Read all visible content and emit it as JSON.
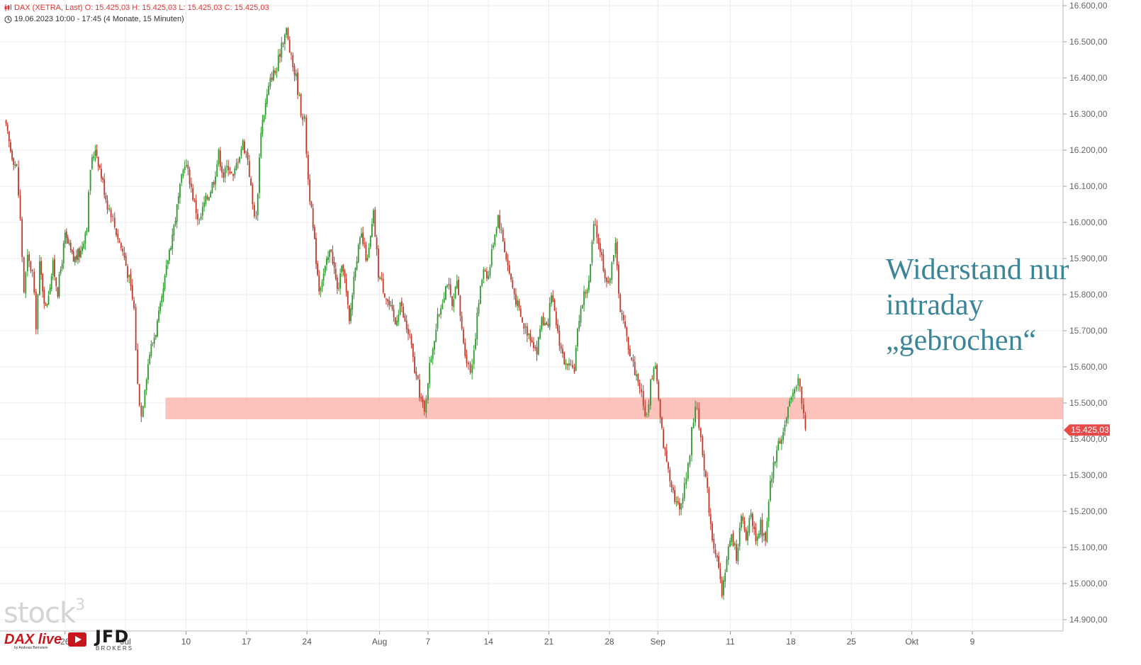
{
  "header": {
    "instrument_line": "DAX (XETRA, Last)  O: 15.425,03  H: 15.425,03  L: 15.425,03  C: 15.425,03",
    "period_line": "19.06.2023 10:00 - 17:45    (4 Monate, 15 Minuten)"
  },
  "annotation": {
    "text": "Widerstand nur\nintraday\n„gebrochen“"
  },
  "logos": {
    "stock3": "stock",
    "stock3_sup": "3",
    "dax_live": "DAX live",
    "dax_live_sub": "by Andreas Bernstein",
    "jfd": "JFD",
    "jfd_sub": "BROKERS"
  },
  "colors": {
    "up": "#2e9a2e",
    "down": "#c0392b",
    "zone": "#fbb8b0",
    "annotation": "#3a8598",
    "price_badge": "#e84a4a",
    "grid": "#ebebeb"
  },
  "chart_data": {
    "type": "candlestick",
    "title": "DAX (XETRA, Last)",
    "interval": "15 Minuten",
    "range": "4 Monate",
    "ylim": [
      14880,
      16610
    ],
    "y_ticks": [
      14900,
      15000,
      15100,
      15200,
      15300,
      15400,
      15500,
      15600,
      15700,
      15800,
      15900,
      16000,
      16100,
      16200,
      16300,
      16400,
      16500,
      16600
    ],
    "y_tick_labels": [
      "14.900,00",
      "15.000,00",
      "15.100,00",
      "15.200,00",
      "15.300,00",
      "15.400,00",
      "15.500,00",
      "15.600,00",
      "15.700,00",
      "15.800,00",
      "15.900,00",
      "16.000,00",
      "16.100,00",
      "16.200,00",
      "16.300,00",
      "16.400,00",
      "16.500,00",
      "16.600,00"
    ],
    "last_price": 15425.03,
    "last_price_label": "15.425,03",
    "resistance_zone": [
      15455,
      15515
    ],
    "zone_start_day": 8.8,
    "x_day_count": 120,
    "x_ticks": [
      {
        "day": 0.5,
        "label": "26"
      },
      {
        "day": 5.5,
        "label": "Jul"
      },
      {
        "day": 10.5,
        "label": "10"
      },
      {
        "day": 15.5,
        "label": "17"
      },
      {
        "day": 20.5,
        "label": "24"
      },
      {
        "day": 26.5,
        "label": "Aug"
      },
      {
        "day": 30.5,
        "label": "7"
      },
      {
        "day": 35.5,
        "label": "14"
      },
      {
        "day": 40.5,
        "label": "21"
      },
      {
        "day": 45.5,
        "label": "28"
      },
      {
        "day": 49.5,
        "label": "Sep"
      },
      {
        "day": 55.5,
        "label": "11"
      },
      {
        "day": 60.5,
        "label": "18"
      },
      {
        "day": 65.5,
        "label": "25"
      },
      {
        "day": 70.5,
        "label": "Okt"
      },
      {
        "day": 75.5,
        "label": "9"
      }
    ],
    "price_path": [
      [
        -4.5,
        16280
      ],
      [
        -4.0,
        16200
      ],
      [
        -3.5,
        16150
      ],
      [
        -3.2,
        16005
      ],
      [
        -2.9,
        15810
      ],
      [
        -2.6,
        15900
      ],
      [
        -2.2,
        15860
      ],
      [
        -1.9,
        15720
      ],
      [
        -1.6,
        15880
      ],
      [
        -1.1,
        15760
      ],
      [
        -0.5,
        15880
      ],
      [
        -0.1,
        15810
      ],
      [
        0.5,
        15960
      ],
      [
        1.2,
        15895
      ],
      [
        1.8,
        15920
      ],
      [
        2.3,
        15995
      ],
      [
        2.6,
        16150
      ],
      [
        3.0,
        16210
      ],
      [
        3.5,
        16130
      ],
      [
        4.0,
        16050
      ],
      [
        4.3,
        16030
      ],
      [
        4.6,
        15990
      ],
      [
        5.0,
        15945
      ],
      [
        5.4,
        15905
      ],
      [
        5.8,
        15840
      ],
      [
        6.2,
        15760
      ],
      [
        6.5,
        15550
      ],
      [
        6.8,
        15465
      ],
      [
        7.1,
        15550
      ],
      [
        7.5,
        15640
      ],
      [
        8.0,
        15700
      ],
      [
        8.5,
        15780
      ],
      [
        9.0,
        15900
      ],
      [
        9.5,
        15990
      ],
      [
        10.0,
        16090
      ],
      [
        10.4,
        16170
      ],
      [
        10.8,
        16120
      ],
      [
        11.2,
        16050
      ],
      [
        11.6,
        16000
      ],
      [
        12.0,
        16050
      ],
      [
        12.4,
        16080
      ],
      [
        12.8,
        16120
      ],
      [
        13.2,
        16190
      ],
      [
        13.6,
        16130
      ],
      [
        14.0,
        16160
      ],
      [
        14.4,
        16120
      ],
      [
        14.8,
        16180
      ],
      [
        15.2,
        16220
      ],
      [
        15.6,
        16180
      ],
      [
        16.0,
        16050
      ],
      [
        16.3,
        16010
      ],
      [
        16.7,
        16260
      ],
      [
        17.2,
        16350
      ],
      [
        17.6,
        16410
      ],
      [
        18.0,
        16420
      ],
      [
        18.4,
        16500
      ],
      [
        18.8,
        16530
      ],
      [
        19.2,
        16450
      ],
      [
        19.6,
        16400
      ],
      [
        20.0,
        16310
      ],
      [
        20.3,
        16280
      ],
      [
        20.6,
        16120
      ],
      [
        21.0,
        15980
      ],
      [
        21.5,
        15820
      ],
      [
        22.0,
        15870
      ],
      [
        22.5,
        15930
      ],
      [
        23.0,
        15810
      ],
      [
        23.5,
        15880
      ],
      [
        24.0,
        15720
      ],
      [
        24.5,
        15890
      ],
      [
        25.0,
        15960
      ],
      [
        25.5,
        15890
      ],
      [
        26.0,
        16020
      ],
      [
        26.4,
        15860
      ],
      [
        26.8,
        15820
      ],
      [
        27.3,
        15770
      ],
      [
        27.8,
        15720
      ],
      [
        28.2,
        15780
      ],
      [
        28.6,
        15720
      ],
      [
        29.0,
        15680
      ],
      [
        29.4,
        15590
      ],
      [
        29.8,
        15530
      ],
      [
        30.2,
        15470
      ],
      [
        30.5,
        15570
      ],
      [
        30.9,
        15660
      ],
      [
        31.3,
        15730
      ],
      [
        31.7,
        15790
      ],
      [
        32.1,
        15840
      ],
      [
        32.5,
        15760
      ],
      [
        32.9,
        15830
      ],
      [
        33.3,
        15700
      ],
      [
        33.7,
        15620
      ],
      [
        34.0,
        15590
      ],
      [
        34.3,
        15650
      ],
      [
        34.7,
        15780
      ],
      [
        35.1,
        15880
      ],
      [
        35.5,
        15850
      ],
      [
        35.9,
        15950
      ],
      [
        36.3,
        16020
      ],
      [
        36.7,
        15950
      ],
      [
        37.1,
        15880
      ],
      [
        37.5,
        15820
      ],
      [
        37.9,
        15770
      ],
      [
        38.3,
        15720
      ],
      [
        38.7,
        15700
      ],
      [
        39.1,
        15680
      ],
      [
        39.5,
        15640
      ],
      [
        39.9,
        15740
      ],
      [
        40.3,
        15700
      ],
      [
        40.7,
        15790
      ],
      [
        41.1,
        15720
      ],
      [
        41.5,
        15650
      ],
      [
        41.9,
        15600
      ],
      [
        42.3,
        15590
      ],
      [
        42.6,
        15600
      ],
      [
        43.0,
        15740
      ],
      [
        43.4,
        15800
      ],
      [
        43.8,
        15830
      ],
      [
        44.2,
        15990
      ],
      [
        44.6,
        15950
      ],
      [
        45.0,
        15880
      ],
      [
        45.4,
        15820
      ],
      [
        45.7,
        15900
      ],
      [
        46.0,
        15930
      ],
      [
        46.4,
        15760
      ],
      [
        46.8,
        15700
      ],
      [
        47.2,
        15640
      ],
      [
        47.6,
        15590
      ],
      [
        48.0,
        15550
      ],
      [
        48.3,
        15490
      ],
      [
        48.6,
        15460
      ],
      [
        48.9,
        15560
      ],
      [
        49.3,
        15610
      ],
      [
        49.7,
        15450
      ],
      [
        50.1,
        15360
      ],
      [
        50.5,
        15300
      ],
      [
        50.9,
        15240
      ],
      [
        51.3,
        15200
      ],
      [
        51.7,
        15280
      ],
      [
        52.0,
        15320
      ],
      [
        52.3,
        15420
      ],
      [
        52.6,
        15500
      ],
      [
        52.9,
        15440
      ],
      [
        53.2,
        15370
      ],
      [
        53.6,
        15250
      ],
      [
        54.0,
        15130
      ],
      [
        54.4,
        15070
      ],
      [
        54.8,
        14960
      ],
      [
        55.2,
        15080
      ],
      [
        55.6,
        15130
      ],
      [
        56.0,
        15080
      ],
      [
        56.4,
        15180
      ],
      [
        56.8,
        15120
      ],
      [
        57.2,
        15210
      ],
      [
        57.6,
        15100
      ],
      [
        58.0,
        15160
      ],
      [
        58.4,
        15110
      ],
      [
        58.8,
        15270
      ],
      [
        59.2,
        15350
      ],
      [
        59.6,
        15400
      ],
      [
        60.0,
        15440
      ],
      [
        60.4,
        15490
      ],
      [
        60.8,
        15550
      ],
      [
        61.1,
        15570
      ],
      [
        61.4,
        15500
      ],
      [
        61.7,
        15430
      ]
    ]
  }
}
